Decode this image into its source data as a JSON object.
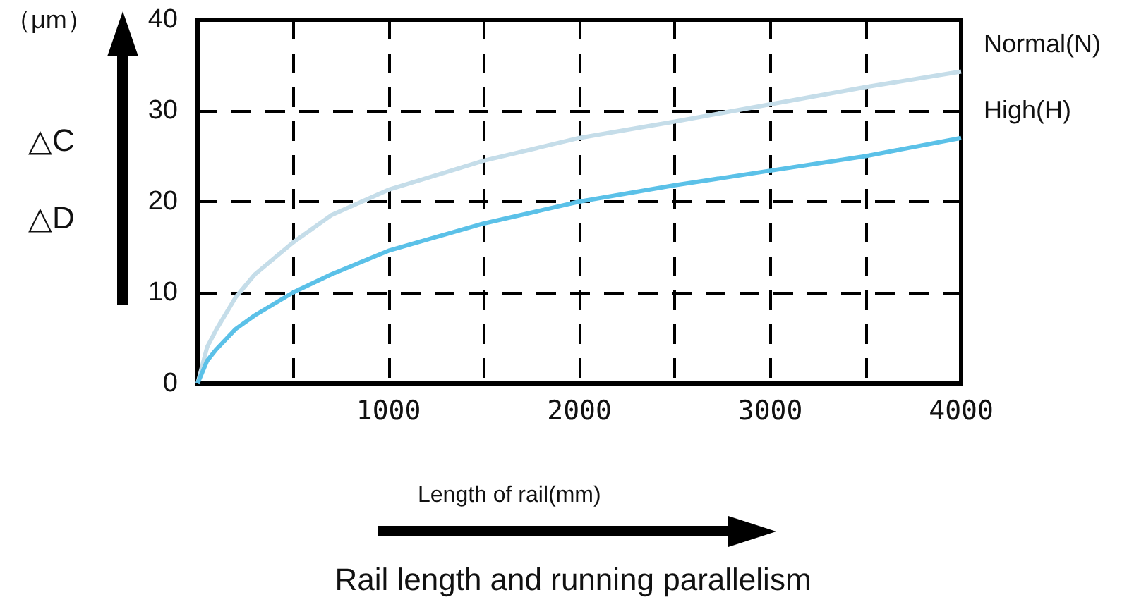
{
  "chart_data": {
    "type": "line",
    "title": "Rail length and running parallelism",
    "xlabel": "Length of rail(mm)",
    "ylabel": "△C\n△D",
    "annotations": [
      "（μm）"
    ],
    "x": [
      0,
      50,
      100,
      200,
      300,
      500,
      700,
      1000,
      1500,
      2000,
      2500,
      3000,
      3500,
      4000
    ],
    "series": [
      {
        "name": "Normal(N)",
        "color": "#c5dde9",
        "values": [
          0,
          4,
          6,
          9.5,
          12,
          15.5,
          18.5,
          21.3,
          24.5,
          27,
          28.8,
          30.7,
          32.6,
          34.3
        ]
      },
      {
        "name": "High(H)",
        "color": "#5bc1e8",
        "values": [
          0,
          2.5,
          3.8,
          6,
          7.5,
          10,
          12,
          14.6,
          17.6,
          20,
          21.8,
          23.4,
          25,
          27
        ]
      }
    ],
    "xlim": [
      0,
      4000
    ],
    "xticks": [
      {
        "value": 0,
        "label": null
      },
      {
        "value": 500,
        "label": null
      },
      1000,
      {
        "value": 1500,
        "label": null
      },
      2000,
      {
        "value": 2500,
        "label": null
      },
      3000,
      {
        "value": 3500,
        "label": null
      },
      4000
    ],
    "ylim": [
      0,
      40
    ],
    "yticks": [
      0,
      10,
      20,
      30,
      40
    ],
    "grid": true,
    "legend": false,
    "marker": "none",
    "line_style": "solid"
  }
}
